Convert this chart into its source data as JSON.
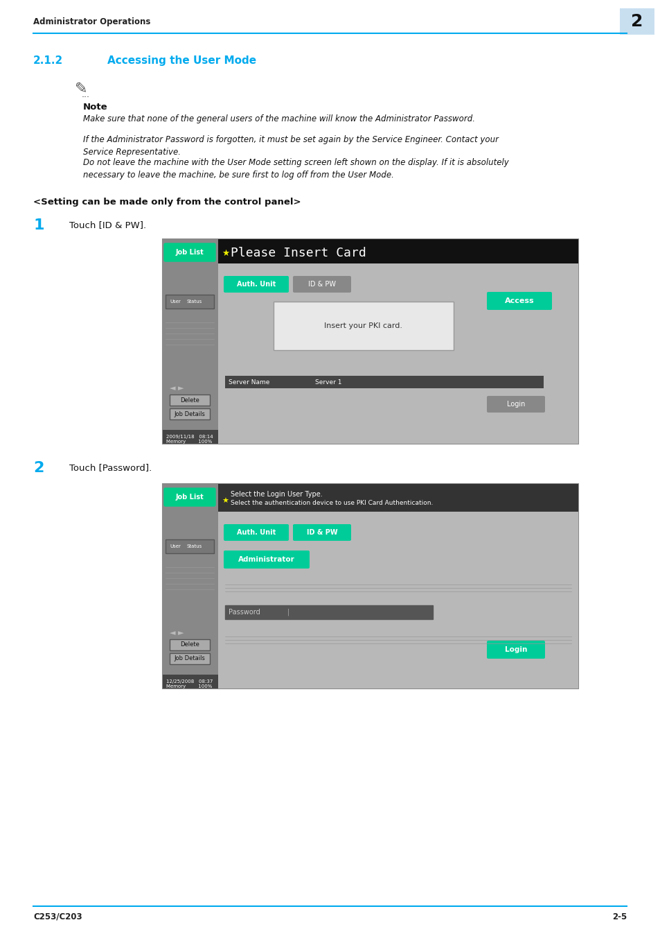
{
  "page_bg": "#ffffff",
  "header_text": "Administrator Operations",
  "header_line_color": "#00aaee",
  "chapter_num": "2",
  "chapter_num_bg": "#c8dff0",
  "section_num": "2.1.2",
  "section_title": "Accessing the User Mode",
  "section_color": "#00aaee",
  "note_label": "Note",
  "note_lines": [
    "Make sure that none of the general users of the machine will know the Administrator Password.",
    "If the Administrator Password is forgotten, it must be set again by the Service Engineer. Contact your\nService Representative.",
    "Do not leave the machine with the User Mode setting screen left shown on the display. If it is absolutely\nnecessary to leave the machine, be sure first to log off from the User Mode."
  ],
  "setting_label": "<Setting can be made only from the control panel>",
  "step1_num": "1",
  "step1_text": "Touch [ID & PW].",
  "step2_num": "2",
  "step2_text": "Touch [Password].",
  "footer_line_color": "#00aaee",
  "footer_left": "C253/C203",
  "footer_right": "2-5"
}
